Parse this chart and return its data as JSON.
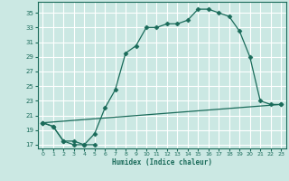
{
  "xlabel": "Humidex (Indice chaleur)",
  "bg_color": "#cbe8e3",
  "line_color": "#1a6b5a",
  "grid_color": "#ffffff",
  "xlim": [
    -0.5,
    23.5
  ],
  "ylim": [
    16.5,
    36.5
  ],
  "yticks": [
    17,
    19,
    21,
    23,
    25,
    27,
    29,
    31,
    33,
    35
  ],
  "xticks": [
    0,
    1,
    2,
    3,
    4,
    5,
    6,
    7,
    8,
    9,
    10,
    11,
    12,
    13,
    14,
    15,
    16,
    17,
    18,
    19,
    20,
    21,
    22,
    23
  ],
  "s1x": [
    0,
    1,
    2,
    3,
    4,
    5
  ],
  "s1y": [
    20.0,
    19.5,
    17.5,
    17.0,
    17.0,
    17.0
  ],
  "s2x": [
    0,
    1,
    2,
    3,
    4,
    5,
    6,
    7,
    8,
    9,
    10,
    11,
    12,
    13,
    14,
    15,
    16,
    17,
    18,
    19,
    20,
    21,
    22,
    23
  ],
  "s2y": [
    20.0,
    19.5,
    17.5,
    17.5,
    17.0,
    18.5,
    22.0,
    24.5,
    29.5,
    30.5,
    33.0,
    33.0,
    33.5,
    33.5,
    34.0,
    35.5,
    35.5,
    35.0,
    34.5,
    32.5,
    29.0,
    23.0,
    22.5,
    22.5
  ],
  "s3x": [
    0,
    23
  ],
  "s3y": [
    20.0,
    22.5
  ]
}
